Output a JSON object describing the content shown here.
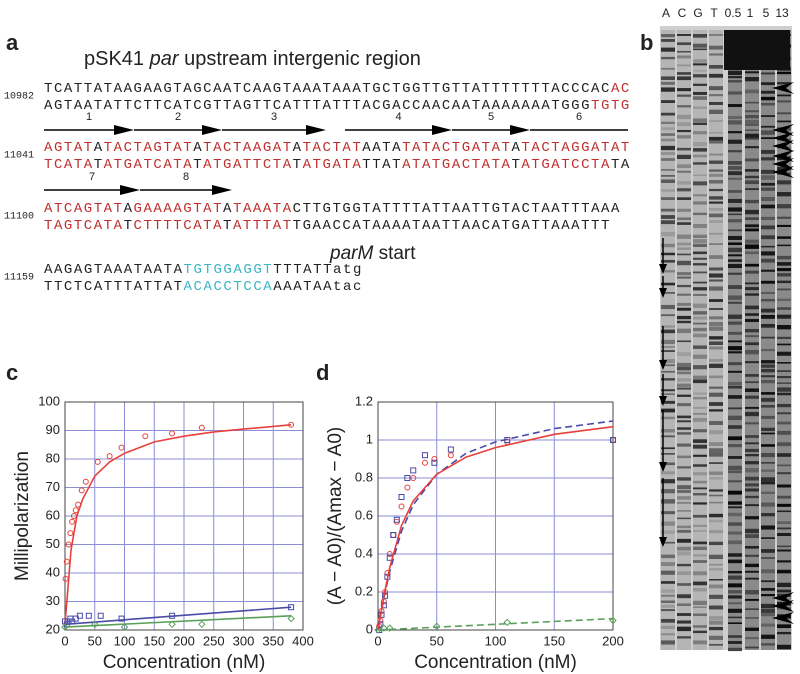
{
  "panels": {
    "a": {
      "label": "a",
      "title": [
        "pSK41 ",
        "par",
        " upstream intergenic region"
      ],
      "rows": [
        {
          "number": 10982,
          "top": [
            {
              "text": "TCATTATAAGAAGTAGCAATCAAGTAAATAAATGCTGGTTGTTATTTTTTTACCCAC",
              "color": "#222222"
            },
            {
              "text": "AC",
              "color": "#c0302e"
            }
          ],
          "bottom": [
            {
              "text": "AGTAATATTCTTCATCGTTAGTTCATTTATTTACGACCAACAATAAAAAAATGGG",
              "color": "#222222"
            },
            {
              "text": "TGTG",
              "color": "#c0302e"
            }
          ]
        },
        {
          "number": 11041,
          "top": [
            {
              "text": "AGTAT",
              "color": "#c0302e"
            },
            {
              "text": "A",
              "color": "#222222"
            },
            {
              "text": "TACTAGTAT",
              "color": "#c0302e"
            },
            {
              "text": "A",
              "color": "#222222"
            },
            {
              "text": "TACTAAGAT",
              "color": "#c0302e"
            },
            {
              "text": "A",
              "color": "#222222"
            },
            {
              "text": "TACTAT",
              "color": "#c0302e"
            },
            {
              "text": "AATA",
              "color": "#222222"
            },
            {
              "text": "TATACTGATAT",
              "color": "#c0302e"
            },
            {
              "text": "A",
              "color": "#222222"
            },
            {
              "text": "TACTAGGATAT",
              "color": "#c0302e"
            }
          ],
          "bottom": [
            {
              "text": "TCATA",
              "color": "#c0302e"
            },
            {
              "text": "T",
              "color": "#222222"
            },
            {
              "text": "ATGATCATA",
              "color": "#c0302e"
            },
            {
              "text": "T",
              "color": "#222222"
            },
            {
              "text": "ATGATTCTA",
              "color": "#c0302e"
            },
            {
              "text": "T",
              "color": "#222222"
            },
            {
              "text": "ATGATA",
              "color": "#c0302e"
            },
            {
              "text": "TTAT",
              "color": "#222222"
            },
            {
              "text": "ATATGACTATA",
              "color": "#c0302e"
            },
            {
              "text": "T",
              "color": "#222222"
            },
            {
              "text": "ATGATCCTA",
              "color": "#c0302e"
            },
            {
              "text": "TA",
              "color": "#222222"
            }
          ]
        },
        {
          "number": 11100,
          "top": [
            {
              "text": "ATCAGTAT",
              "color": "#c0302e"
            },
            {
              "text": "A",
              "color": "#222222"
            },
            {
              "text": "GAAAAGTAT",
              "color": "#c0302e"
            },
            {
              "text": "A",
              "color": "#222222"
            },
            {
              "text": "TAAATA",
              "color": "#c0302e"
            },
            {
              "text": "CTTGTGGTATTTTATTAATTGTACTAATTTAAA",
              "color": "#222222"
            }
          ],
          "bottom": [
            {
              "text": "TAGTCATA",
              "color": "#c0302e"
            },
            {
              "text": "T",
              "color": "#222222"
            },
            {
              "text": "CTTTTCATA",
              "color": "#c0302e"
            },
            {
              "text": "T",
              "color": "#222222"
            },
            {
              "text": "ATTTAT",
              "color": "#c0302e"
            },
            {
              "text": "TGAACCATAAAATAATTAACATGATTAAATTT",
              "color": "#222222"
            }
          ]
        },
        {
          "number": 11159,
          "top": [
            {
              "text": "AAGAGTAAATAATA",
              "color": "#222222"
            },
            {
              "text": "TGTGGAGGT",
              "color": "#3bb5c4"
            },
            {
              "text": "TTTATTatg",
              "color": "#222222"
            }
          ],
          "bottom": [
            {
              "text": "TTCTCATTTATTAT",
              "color": "#222222"
            },
            {
              "text": "ACACCTCCA",
              "color": "#3bb5c4"
            },
            {
              "text": "AAATAAtac",
              "color": "#222222"
            }
          ]
        }
      ],
      "repeats": [
        "1",
        "2",
        "3",
        "4",
        "5",
        "6",
        "7",
        "8"
      ],
      "start_label": [
        "parM",
        " start"
      ]
    },
    "b": {
      "label": "b",
      "lanes": [
        "A",
        "C",
        "G",
        "T",
        "0.5",
        "1",
        "5",
        "13"
      ]
    },
    "c": {
      "label": "c"
    },
    "d": {
      "label": "d"
    }
  },
  "chart_data": [
    {
      "type": "scatter",
      "xlabel": "Concentration (nM)",
      "ylabel": "Millipolarization",
      "xlim": [
        0,
        400
      ],
      "ylim": [
        20,
        100
      ],
      "xticks": [
        0,
        50,
        100,
        150,
        200,
        250,
        300,
        350,
        400
      ],
      "yticks": [
        20,
        30,
        40,
        50,
        60,
        70,
        80,
        90,
        100
      ],
      "grid": true,
      "series": [
        {
          "color": "#e8413c",
          "mode": "markers",
          "marker": "circle",
          "x": [
            1,
            3,
            6,
            9,
            12,
            15,
            18,
            22,
            28,
            35,
            55,
            75,
            95,
            135,
            180,
            230,
            380
          ],
          "values": [
            38,
            44,
            50,
            54,
            58,
            60,
            62,
            64,
            69,
            72,
            79,
            81,
            84,
            88,
            89,
            91,
            92
          ]
        },
        {
          "color": "#e8413c",
          "mode": "line",
          "x": [
            0,
            10,
            20,
            30,
            50,
            75,
            100,
            150,
            200,
            250,
            300,
            380
          ],
          "values": [
            22,
            48,
            60,
            66,
            74,
            79,
            82,
            86,
            88,
            89.5,
            90.5,
            92
          ]
        },
        {
          "color": "#4a4aa8",
          "mode": "markers",
          "marker": "square",
          "x": [
            0,
            3,
            6,
            9,
            12,
            18,
            25,
            40,
            60,
            95,
            180,
            380
          ],
          "values": [
            23,
            22,
            23,
            24,
            23,
            24,
            25,
            25,
            25,
            24,
            25,
            28
          ]
        },
        {
          "color": "#4a4aa8",
          "mode": "line",
          "x": [
            0,
            380
          ],
          "values": [
            22,
            28
          ]
        },
        {
          "color": "#5aa05a",
          "mode": "markers",
          "marker": "diamond",
          "x": [
            0,
            50,
            100,
            180,
            230,
            380
          ],
          "values": [
            21,
            22,
            21,
            22,
            22,
            24
          ]
        },
        {
          "color": "#5aa05a",
          "mode": "line",
          "x": [
            0,
            380
          ],
          "values": [
            21,
            25
          ]
        }
      ]
    },
    {
      "type": "scatter",
      "xlabel": "Concentration (nM)",
      "ylabel": "(A − A0)/(Amax − A0)",
      "xlim": [
        0,
        200
      ],
      "ylim": [
        0,
        1.2
      ],
      "xticks": [
        0,
        50,
        100,
        150,
        200
      ],
      "yticks": [
        0,
        0.2,
        0.4,
        0.6,
        0.8,
        1,
        1.2
      ],
      "grid": true,
      "series": [
        {
          "color": "#e8413c",
          "mode": "markers",
          "marker": "circle",
          "x": [
            1,
            2,
            3,
            5,
            6,
            8,
            10,
            13,
            16,
            20,
            25,
            30,
            40,
            48,
            62,
            110,
            200
          ],
          "values": [
            0.02,
            0.05,
            0.1,
            0.15,
            0.2,
            0.3,
            0.4,
            0.5,
            0.57,
            0.65,
            0.75,
            0.8,
            0.88,
            0.9,
            0.92,
            0.99,
            1.0
          ]
        },
        {
          "color": "#4a4aa8",
          "mode": "markers",
          "marker": "square",
          "x": [
            1,
            2,
            3,
            5,
            6,
            8,
            10,
            13,
            16,
            20,
            25,
            30,
            40,
            48,
            62,
            110,
            200
          ],
          "values": [
            0,
            0.03,
            0.08,
            0.13,
            0.18,
            0.28,
            0.38,
            0.5,
            0.58,
            0.7,
            0.8,
            0.84,
            0.92,
            0.88,
            0.95,
            1.0,
            1.0
          ]
        },
        {
          "color": "#5aa05a",
          "mode": "markers",
          "marker": "diamond",
          "x": [
            0,
            5,
            10,
            50,
            110,
            200
          ],
          "values": [
            0,
            0.01,
            0.01,
            0.02,
            0.04,
            0.05
          ]
        },
        {
          "color": "#4a4aa8",
          "mode": "line",
          "dash": true,
          "x": [
            0,
            5,
            10,
            20,
            30,
            50,
            75,
            100,
            150,
            200
          ],
          "values": [
            0,
            0.17,
            0.31,
            0.52,
            0.66,
            0.82,
            0.93,
            0.99,
            1.06,
            1.1
          ]
        },
        {
          "color": "#e8413c",
          "mode": "line",
          "x": [
            0,
            5,
            10,
            20,
            30,
            50,
            75,
            100,
            150,
            200
          ],
          "values": [
            0,
            0.18,
            0.33,
            0.55,
            0.68,
            0.82,
            0.91,
            0.96,
            1.03,
            1.07
          ]
        },
        {
          "color": "#5aa05a",
          "mode": "line",
          "dash": true,
          "x": [
            0,
            200
          ],
          "values": [
            0,
            0.06
          ]
        }
      ]
    }
  ]
}
